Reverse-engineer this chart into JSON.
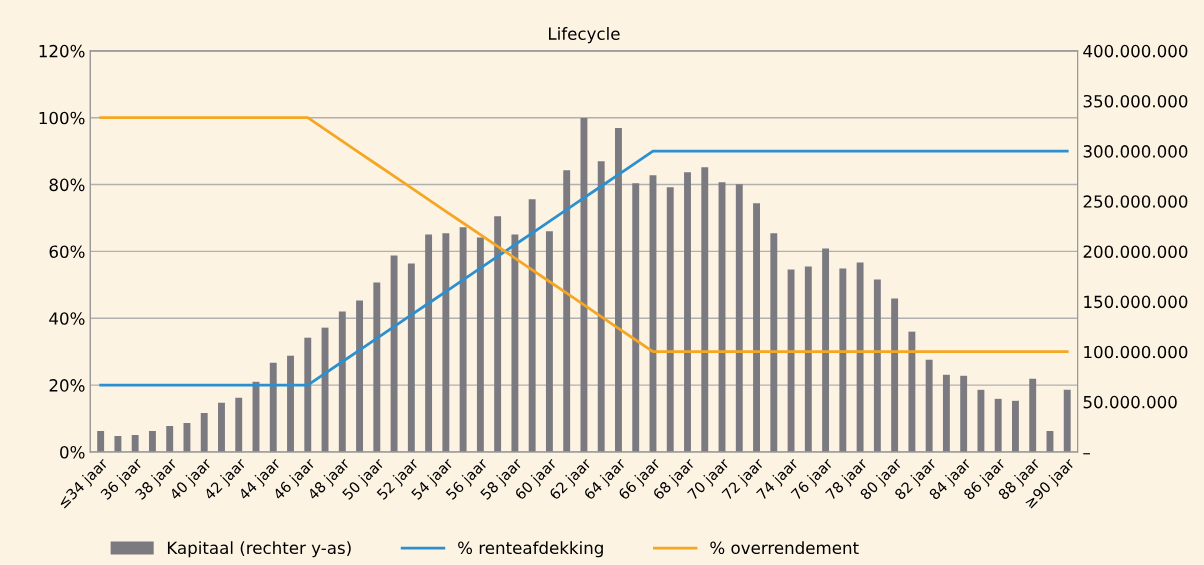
{
  "chart_data": {
    "type": "bar",
    "title": "Lifecycle",
    "categories": [
      "≤34 jaar",
      null,
      "36 jaar",
      null,
      "38 jaar",
      null,
      "40 jaar",
      null,
      "42 jaar",
      null,
      "44 jaar",
      null,
      "46 jaar",
      null,
      "48 jaar",
      null,
      "50 jaar",
      null,
      "52 jaar",
      null,
      "54 jaar",
      null,
      "56 jaar",
      null,
      "58 jaar",
      null,
      "60 jaar",
      null,
      "62 jaar",
      null,
      "64 jaar",
      null,
      "66 jaar",
      null,
      "68 jaar",
      null,
      "70 jaar",
      null,
      "72 jaar",
      null,
      "74 jaar",
      null,
      "76 jaar",
      null,
      "78 jaar",
      null,
      "80 jaar",
      null,
      "82 jaar",
      null,
      "84 jaar",
      null,
      "86 jaar",
      null,
      "88 jaar",
      null,
      "≥90 jaar"
    ],
    "series": [
      {
        "name": "Kapitaal (rechter y-as)",
        "axis": "y2",
        "color": "#7b7a80",
        "values": [
          21000000,
          16000000,
          17000000,
          21000000,
          26000000,
          29000000,
          39000000,
          49000000,
          54000000,
          70000000,
          89000000,
          96000000,
          114000000,
          124000000,
          140000000,
          151000000,
          169000000,
          196000000,
          188000000,
          217000000,
          218000000,
          224000000,
          214000000,
          235000000,
          217000000,
          252000000,
          220000000,
          281000000,
          333000000,
          290000000,
          323000000,
          268000000,
          276000000,
          264000000,
          279000000,
          284000000,
          269000000,
          267000000,
          248000000,
          218000000,
          182000000,
          185000000,
          203000000,
          183000000,
          189000000,
          172000000,
          153000000,
          120000000,
          92000000,
          77000000,
          76000000,
          62000000,
          53000000,
          51000000,
          73000000,
          21000000,
          62000000
        ]
      },
      {
        "name": "% renteafdekking",
        "type": "line",
        "color": "#2b8fd0",
        "values": [
          20,
          20,
          20,
          20,
          20,
          20,
          20,
          20,
          20,
          20,
          20,
          20,
          20,
          23.5,
          27,
          30.5,
          34,
          37.5,
          41,
          44.5,
          48,
          51.5,
          55,
          58.5,
          62,
          65.5,
          69,
          72.5,
          76,
          79.5,
          83,
          86.5,
          90,
          90,
          90,
          90,
          90,
          90,
          90,
          90,
          90,
          90,
          90,
          90,
          90,
          90,
          90,
          90,
          90,
          90,
          90,
          90,
          90,
          90,
          90,
          90,
          90
        ]
      },
      {
        "name": "% overrendement",
        "type": "line",
        "color": "#f5a623",
        "values": [
          100,
          100,
          100,
          100,
          100,
          100,
          100,
          100,
          100,
          100,
          100,
          100,
          100,
          96.5,
          93,
          89.5,
          86,
          82.5,
          79,
          75.5,
          72,
          68.5,
          65,
          61.5,
          58,
          54.5,
          51,
          47.5,
          44,
          40.5,
          37,
          33.5,
          30,
          30,
          30,
          30,
          30,
          30,
          30,
          30,
          30,
          30,
          30,
          30,
          30,
          30,
          30,
          30,
          30,
          30,
          30,
          30,
          30,
          30,
          30,
          30,
          30
        ]
      }
    ],
    "ylim": [
      0,
      120
    ],
    "yticks": [
      {
        "value": 0,
        "label": "0%"
      },
      {
        "value": 20,
        "label": "20%"
      },
      {
        "value": 40,
        "label": "40%"
      },
      {
        "value": 60,
        "label": "60%"
      },
      {
        "value": 80,
        "label": "80%"
      },
      {
        "value": 100,
        "label": "100%"
      },
      {
        "value": 120,
        "label": "120%"
      }
    ],
    "y2lim": [
      0,
      400000000
    ],
    "y2ticks": [
      {
        "value": 0,
        "label": "–"
      },
      {
        "value": 50000000,
        "label": "50.000.000"
      },
      {
        "value": 100000000,
        "label": "100.000.000"
      },
      {
        "value": 150000000,
        "label": "150.000.000"
      },
      {
        "value": 200000000,
        "label": "200.000.000"
      },
      {
        "value": 250000000,
        "label": "250.000.000"
      },
      {
        "value": 300000000,
        "label": "300.000.000"
      },
      {
        "value": 350000000,
        "label": "350.000.000"
      },
      {
        "value": 400000000,
        "label": "400.000.000"
      }
    ],
    "grid": "y",
    "legend": "bottom",
    "marker": "none",
    "line_style": "solid"
  }
}
